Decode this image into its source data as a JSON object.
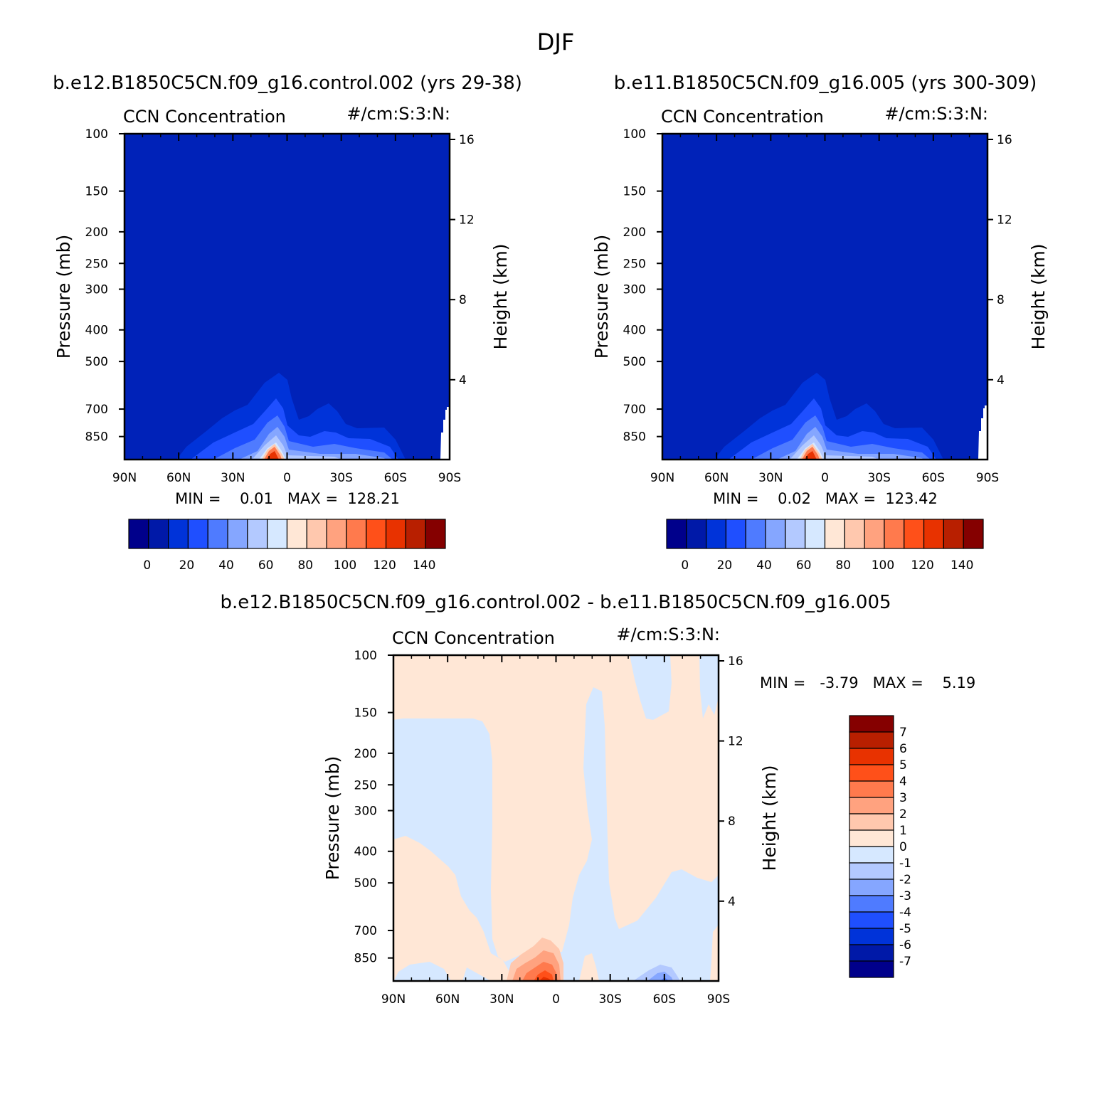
{
  "figure_title": "DJF",
  "panels": {
    "p1": {
      "case_title": "b.e12.B1850C5CN.f09_g16.control.002 (yrs 29-38)",
      "var_label": "CCN Concentration",
      "units_label": "#/cm:S:3:N:",
      "stats": "MIN =    0.01   MAX =  128.21"
    },
    "p2": {
      "case_title": "b.e11.B1850C5CN.f09_g16.005 (yrs 300-309)",
      "var_label": "CCN Concentration",
      "units_label": "#/cm:S:3:N:",
      "stats": "MIN =    0.02   MAX =  123.42"
    },
    "p3": {
      "case_title": "b.e12.B1850C5CN.f09_g16.control.002 - b.e11.B1850C5CN.f09_g16.005",
      "var_label": "CCN Concentration",
      "units_label": "#/cm:S:3:N:",
      "stats": "MIN =   -3.79   MAX =    5.19"
    }
  },
  "colors": {
    "abs_scale": [
      "#00008b",
      "#0019a8",
      "#0033d9",
      "#1f4fff",
      "#4f7bff",
      "#85a6ff",
      "#b3c9ff",
      "#d6e8ff",
      "#ffe7d6",
      "#ffc8ae",
      "#ffa27f",
      "#ff7a4d",
      "#ff5019",
      "#e83200",
      "#b81f00",
      "#850000"
    ],
    "diff_scale": [
      "#850000",
      "#b81f00",
      "#e83200",
      "#ff5019",
      "#ff7a4d",
      "#ffa27f",
      "#ffc8ae",
      "#ffe7d6",
      "#d6e8ff",
      "#b3c9ff",
      "#85a6ff",
      "#4f7bff",
      "#1f4fff",
      "#0033d9",
      "#0019a8",
      "#00008b"
    ]
  },
  "chart_data": [
    {
      "type": "contour",
      "title": "b.e12.B1850C5CN.f09_g16.control.002 (yrs 29-38)",
      "xlabel": "",
      "ylabel": "Pressure (mb)",
      "y2label": "Height (km)",
      "x_ticks": [
        "90N",
        "60N",
        "30N",
        "0",
        "30S",
        "60S",
        "90S"
      ],
      "y_ticks": [
        "100",
        "150",
        "200",
        "250",
        "300",
        "400",
        "500",
        "700",
        "850"
      ],
      "y2_ticks": [
        "16",
        "12",
        "8",
        "4"
      ],
      "ylim": [
        1000,
        100
      ],
      "colorbar_ticks": [
        "0",
        "20",
        "40",
        "60",
        "80",
        "100",
        "120",
        "140"
      ],
      "min": 0.01,
      "max": 128.21
    },
    {
      "type": "contour",
      "title": "b.e11.B1850C5CN.f09_g16.005 (yrs 300-309)",
      "xlabel": "",
      "ylabel": "Pressure (mb)",
      "y2label": "Height (km)",
      "x_ticks": [
        "90N",
        "60N",
        "30N",
        "0",
        "30S",
        "60S",
        "90S"
      ],
      "y_ticks": [
        "100",
        "150",
        "200",
        "250",
        "300",
        "400",
        "500",
        "700",
        "850"
      ],
      "y2_ticks": [
        "16",
        "12",
        "8",
        "4"
      ],
      "ylim": [
        1000,
        100
      ],
      "colorbar_ticks": [
        "0",
        "20",
        "40",
        "60",
        "80",
        "100",
        "120",
        "140"
      ],
      "min": 0.02,
      "max": 123.42
    },
    {
      "type": "contour",
      "title": "b.e12.B1850C5CN.f09_g16.control.002 - b.e11.B1850C5CN.f09_g16.005",
      "xlabel": "",
      "ylabel": "Pressure (mb)",
      "y2label": "Height (km)",
      "x_ticks": [
        "90N",
        "60N",
        "30N",
        "0",
        "30S",
        "60S",
        "90S"
      ],
      "y_ticks": [
        "100",
        "150",
        "200",
        "250",
        "300",
        "400",
        "500",
        "700",
        "850"
      ],
      "y2_ticks": [
        "16",
        "12",
        "8",
        "4"
      ],
      "ylim": [
        1000,
        100
      ],
      "colorbar_ticks": [
        "7",
        "6",
        "5",
        "4",
        "3",
        "2",
        "1",
        "0",
        "-1",
        "-2",
        "-3",
        "-4",
        "-5",
        "-6",
        "-7"
      ],
      "min": -3.79,
      "max": 5.19
    }
  ]
}
